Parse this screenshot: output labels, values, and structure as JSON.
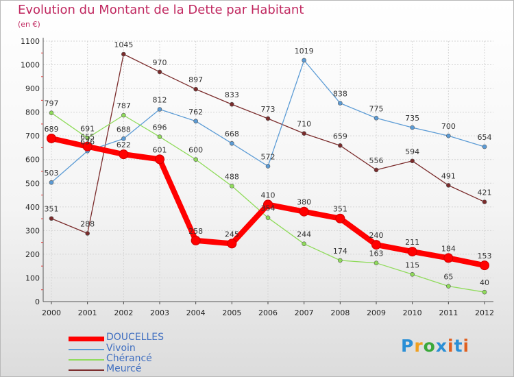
{
  "title": "Evolution du Montant de la Dette par Habitant",
  "subtitle": "(en €)",
  "logo": {
    "text": "Proxiti",
    "letters": [
      "P",
      "r",
      "o",
      "x",
      "i",
      "t",
      "i"
    ],
    "colors": [
      "#2a8fd6",
      "#f0a020",
      "#3aa83a",
      "#2a8fd6",
      "#e06020",
      "#2a8fd6",
      "#e06020"
    ]
  },
  "chart_data": {
    "type": "line",
    "title": "Evolution du Montant de la Dette par Habitant",
    "ylabel": "(en €)",
    "categories": [
      "2000",
      "2001",
      "2002",
      "2003",
      "2004",
      "2005",
      "2006",
      "2007",
      "2008",
      "2009",
      "2010",
      "2011",
      "2012"
    ],
    "ylim": [
      0,
      1100
    ],
    "yticks": [
      0,
      100,
      200,
      300,
      400,
      500,
      600,
      700,
      800,
      900,
      1000,
      1100
    ],
    "grid": true,
    "legend_position": "bottom-left",
    "series": [
      {
        "name": "DOUCELLES",
        "color": "#ff0000",
        "values": [
          689,
          655,
          622,
          601,
          258,
          245,
          410,
          380,
          351,
          240,
          211,
          184,
          153
        ]
      },
      {
        "name": "Vivoin",
        "color": "#5b9bd5",
        "values": [
          503,
          636,
          688,
          812,
          762,
          668,
          572,
          1019,
          838,
          775,
          735,
          700,
          654
        ]
      },
      {
        "name": "Chérancé",
        "color": "#8fdb5a",
        "values": [
          797,
          691,
          787,
          696,
          600,
          488,
          354,
          244,
          174,
          163,
          115,
          65,
          40
        ]
      },
      {
        "name": "Meurcé",
        "color": "#7a2b2b",
        "values": [
          351,
          288,
          1045,
          970,
          897,
          833,
          773,
          710,
          659,
          556,
          594,
          491,
          421
        ]
      }
    ],
    "data_labels": [
      [
        "689",
        "655",
        "622",
        "601",
        "258",
        "245",
        "410",
        "380",
        "351",
        "240",
        "211",
        "184",
        "153"
      ],
      [
        "503",
        "636",
        "688",
        "812",
        "762",
        "668",
        "572",
        "1019",
        "838",
        "775",
        "735",
        "700",
        "654"
      ],
      [
        "797",
        "691",
        "787",
        "696",
        "600",
        "488",
        "354",
        "244",
        "174",
        "163",
        "115",
        "65",
        "40"
      ],
      [
        "351",
        "288",
        "1045",
        "970",
        "897",
        "833",
        "773",
        "710",
        "659",
        "556",
        "594",
        "491",
        "421"
      ]
    ]
  }
}
